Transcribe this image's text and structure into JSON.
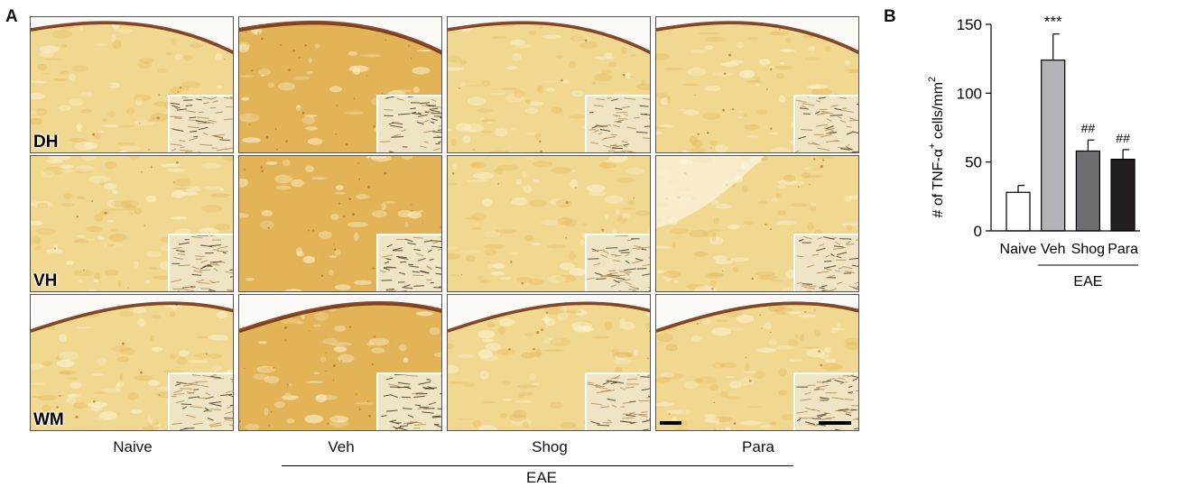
{
  "panel_a": {
    "letter": "A",
    "rows": [
      "DH",
      "VH",
      "WM"
    ],
    "columns": [
      "Naive",
      "Veh",
      "Shog",
      "Para"
    ],
    "group_label": "EAE",
    "stain_colors": {
      "light": "#f1d890",
      "mid": "#e2b457",
      "dark": "#a9631d",
      "edge": "#6e2a0e"
    }
  },
  "panel_b": {
    "letter": "B"
  },
  "chart_data": {
    "type": "bar",
    "categories": [
      "Naive",
      "Veh",
      "Shog",
      "Para"
    ],
    "values": [
      28,
      124,
      58,
      52
    ],
    "errors": [
      5,
      19,
      8,
      7
    ],
    "significance": [
      "",
      "***",
      "##",
      "##"
    ],
    "bar_colors": [
      "#ffffff",
      "#b3b4b8",
      "#6d6e72",
      "#231f20"
    ],
    "ylabel_html_parts": [
      "# of TNF-α",
      "+",
      " cells/mm",
      "2"
    ],
    "yticks": [
      0,
      50,
      100,
      150
    ],
    "ylim": [
      0,
      150
    ],
    "group_label": "EAE",
    "grid": false
  }
}
